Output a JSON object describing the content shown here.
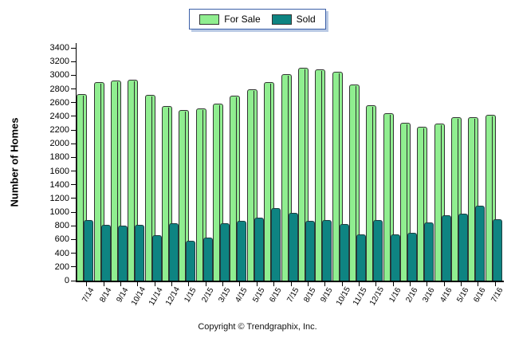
{
  "legend": {
    "items": [
      {
        "label": "For Sale",
        "color": "#90ee90"
      },
      {
        "label": "Sold",
        "color": "#0e8482"
      }
    ]
  },
  "y_axis": {
    "title": "Number of Homes",
    "ticks": [
      0,
      200,
      400,
      600,
      800,
      1000,
      1200,
      1400,
      1600,
      1800,
      2000,
      2200,
      2400,
      2600,
      2800,
      3000,
      3200,
      3400
    ]
  },
  "footer": {
    "copyright": "Copyright © Trendgraphix, Inc."
  },
  "chart_data": {
    "type": "bar",
    "title": "",
    "categories": [
      "7/14",
      "8/14",
      "9/14",
      "10/14",
      "11/14",
      "12/14",
      "1/15",
      "2/15",
      "3/15",
      "4/15",
      "5/15",
      "6/15",
      "7/15",
      "8/15",
      "9/15",
      "10/15",
      "11/15",
      "12/15",
      "1/16",
      "2/16",
      "3/16",
      "4/16",
      "5/16",
      "6/16",
      "7/16"
    ],
    "series": [
      {
        "name": "For Sale",
        "color": "#90ee90",
        "values": [
          2730,
          2900,
          2920,
          2940,
          2710,
          2550,
          2490,
          2510,
          2580,
          2700,
          2800,
          2900,
          3020,
          3110,
          3080,
          3050,
          2860,
          2560,
          2450,
          2300,
          2250,
          2290,
          2390,
          2390,
          2420
        ]
      },
      {
        "name": "Sold",
        "color": "#0e8482",
        "values": [
          880,
          810,
          800,
          820,
          660,
          840,
          580,
          630,
          840,
          870,
          920,
          1060,
          990,
          870,
          880,
          830,
          670,
          880,
          670,
          700,
          850,
          950,
          980,
          1100,
          900
        ]
      }
    ],
    "xlabel": "",
    "ylabel": "Number of Homes",
    "ylim": [
      0,
      3400
    ],
    "ytick_step": 200,
    "grid": false,
    "legend_position": "top-center"
  }
}
